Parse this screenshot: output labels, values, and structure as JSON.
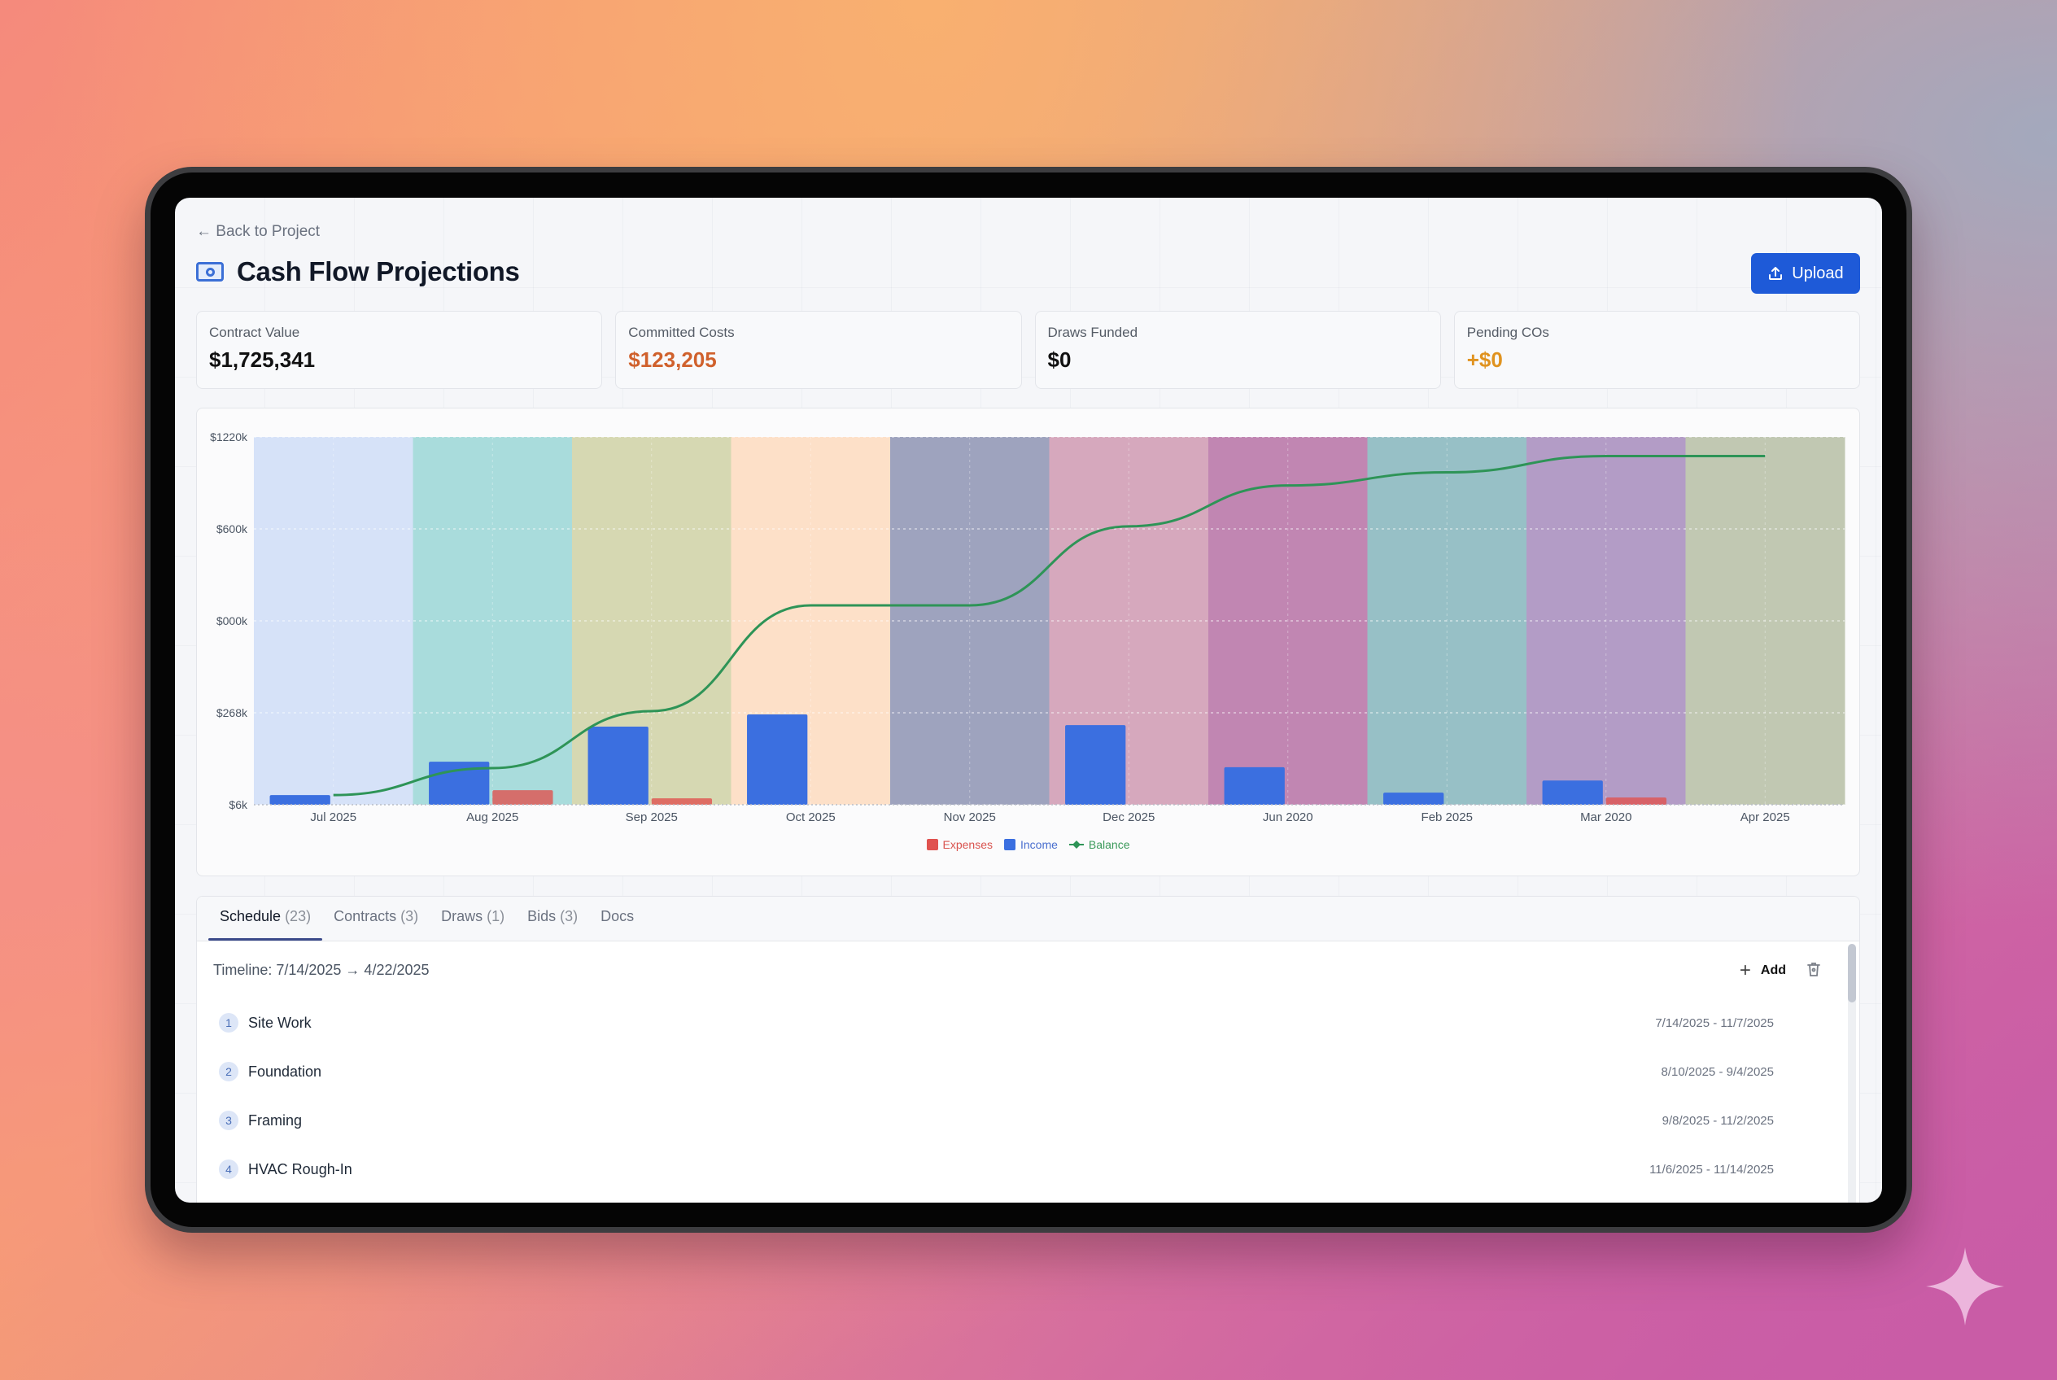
{
  "header": {
    "back_link": "← Back to Project",
    "title": "Cash Flow Projections",
    "title_icon": "banknote-icon",
    "upload_label": "Upload",
    "upload_icon": "upload-icon"
  },
  "stats": [
    {
      "label": "Contract Value",
      "value": "$1,725,341",
      "color": "#111111"
    },
    {
      "label": "Committed Costs",
      "value": "$123,205",
      "color": "#d0612c"
    },
    {
      "label": "Draws Funded",
      "value": "$0",
      "color": "#111111"
    },
    {
      "label": "Pending COs",
      "value": "+$0",
      "color": "#e0931f"
    }
  ],
  "chart_data": {
    "type": "bar",
    "title": "",
    "xlabel": "",
    "ylabel": "",
    "categories": [
      "Jul 2025",
      "Aug 2025",
      "Sep 2025",
      "Oct 2025",
      "Nov 2025",
      "Dec 2025",
      "Jun 2020",
      "Feb 2025",
      "Mar 2020",
      "Apr 2025"
    ],
    "y_tick_labels": [
      "$6k",
      "$268k",
      "$000k",
      "$600k",
      "$1220k"
    ],
    "ylim": [
      6,
      1220
    ],
    "grid": true,
    "legend_position": "bottom",
    "band_colors": [
      "#d6e2f8",
      "#a9dcdc",
      "#d6d8b2",
      "#fde0c8",
      "#9ea3be",
      "#d6a8bd",
      "#c186b2",
      "#97c0c6",
      "#b39cc6",
      "#c1c8b2"
    ],
    "series": [
      {
        "name": "Expenses",
        "type": "bar",
        "color": "#e0524f",
        "values": [
          0,
          54,
          27,
          0,
          6,
          0,
          0,
          0,
          30,
          0
        ]
      },
      {
        "name": "Income",
        "type": "bar",
        "color": "#3b6fe0",
        "values": [
          38,
          148,
          264,
          304,
          0,
          269,
          130,
          46,
          86,
          0
        ]
      },
      {
        "name": "Balance",
        "type": "line",
        "color": "#2e9457",
        "values": [
          38,
          127,
          315,
          664,
          664,
          925,
          1060,
          1103,
          1157,
          1157
        ]
      }
    ]
  },
  "legend": [
    {
      "label": "Expenses",
      "color": "#e0524f",
      "text_color": "#d9544f",
      "shape": "square"
    },
    {
      "label": "Income",
      "color": "#3b6fe0",
      "text_color": "#4a6fcf",
      "shape": "square"
    },
    {
      "label": "Balance",
      "color": "#2e9457",
      "text_color": "#3b9a5a",
      "shape": "line-diamond"
    }
  ],
  "tabs": [
    {
      "label": "Schedule",
      "count": "(23)",
      "active": true
    },
    {
      "label": "Contracts",
      "count": "(3)",
      "active": false
    },
    {
      "label": "Draws",
      "count": "(1)",
      "active": false
    },
    {
      "label": "Bids",
      "count": "(3)",
      "active": false
    },
    {
      "label": "Docs",
      "count": "",
      "active": false
    }
  ],
  "schedule": {
    "timeline": "Timeline: 7/14/2025 → 4/22/2025",
    "add_label": "Add",
    "items": [
      {
        "num": "1",
        "name": "Site Work",
        "dates": "7/14/2025 - 11/7/2025"
      },
      {
        "num": "2",
        "name": "Foundation",
        "dates": "8/10/2025 - 9/4/2025"
      },
      {
        "num": "3",
        "name": "Framing",
        "dates": "9/8/2025 - 11/2/2025"
      },
      {
        "num": "4",
        "name": "HVAC Rough-In",
        "dates": "11/6/2025 - 11/14/2025"
      }
    ]
  }
}
